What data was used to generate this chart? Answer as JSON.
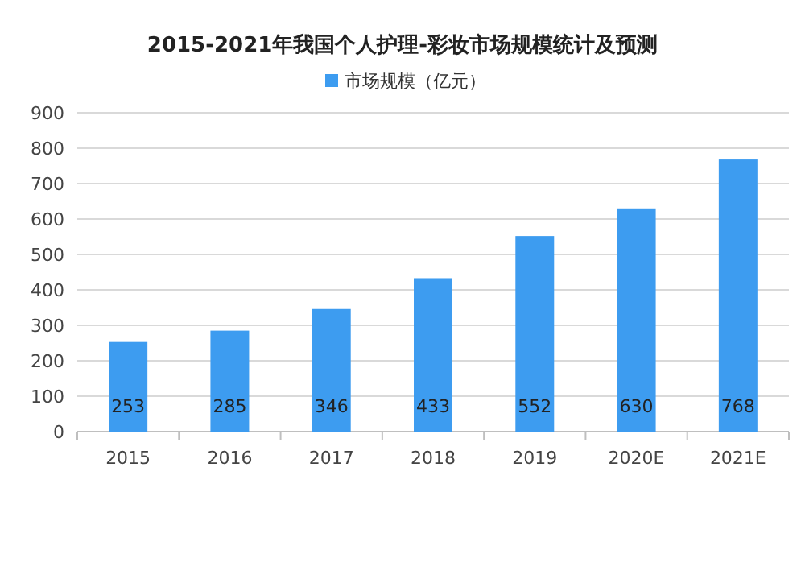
{
  "chart_data": {
    "type": "bar",
    "title": "2015-2021年我国个人护理-彩妆市场规模统计及预测",
    "categories": [
      "2015",
      "2016",
      "2017",
      "2018",
      "2019",
      "2020E",
      "2021E"
    ],
    "series": [
      {
        "name": "市场规模（亿元）",
        "color": "#3d9cf0",
        "values": [
          253,
          285,
          346,
          433,
          552,
          630,
          768
        ]
      }
    ],
    "ylim": [
      0,
      900
    ],
    "yticks": [
      0,
      100,
      200,
      300,
      400,
      500,
      600,
      700,
      800,
      900
    ],
    "grid": "y",
    "legend": "top",
    "data_labels": true
  }
}
